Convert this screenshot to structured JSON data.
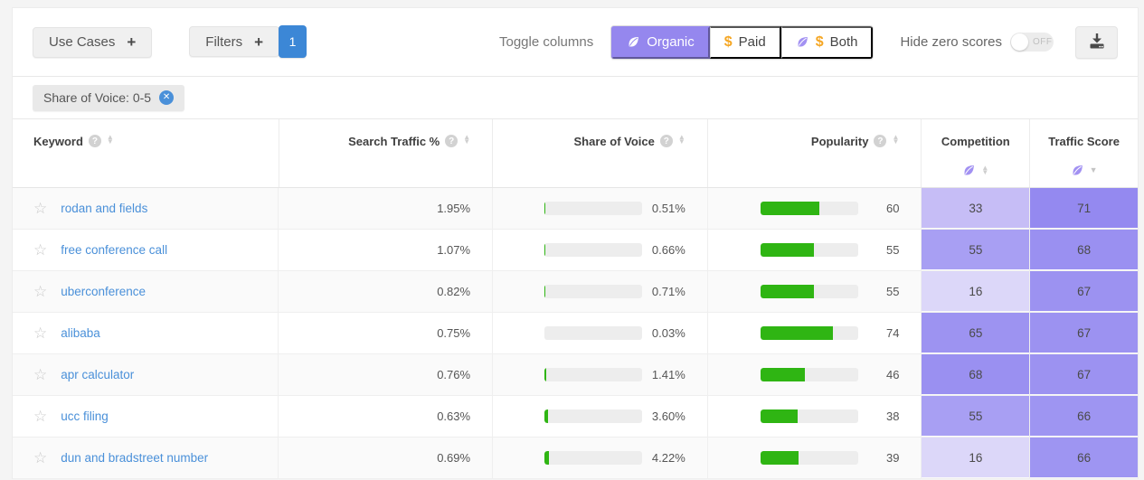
{
  "toolbar": {
    "use_cases_label": "Use Cases",
    "plus": "+",
    "filters_label": "Filters",
    "filters_badge": "1",
    "toggle_columns_label": "Toggle columns",
    "segments": [
      {
        "label": "Organic",
        "icon": "leaf-icon",
        "selected": true
      },
      {
        "label": "Paid",
        "icon": "dollar-icon",
        "selected": false
      },
      {
        "label": "Both",
        "icon": "leaf-and-dollar-icon",
        "selected": false
      }
    ],
    "hide_zero_label": "Hide zero scores",
    "toggle_state": "OFF",
    "download_icon": "download-icon"
  },
  "filters_bar": {
    "chip_label": "Share of Voice: 0-5",
    "chip_close_icon": "close-icon"
  },
  "table": {
    "columns": [
      {
        "label": "Keyword",
        "help": true,
        "sortable": true
      },
      {
        "label": "Search Traffic %",
        "help": true,
        "sortable": true
      },
      {
        "label": "Share of Voice",
        "help": true,
        "sortable": true
      },
      {
        "label": "Popularity",
        "help": true,
        "sortable": true
      },
      {
        "label": "Competition",
        "icon": "leaf-icon",
        "sortable": true
      },
      {
        "label": "Traffic Score",
        "icon": "leaf-icon",
        "sortable": true,
        "sorted": "desc"
      }
    ],
    "rows": [
      {
        "keyword": "rodan and fields",
        "traffic": "1.95%",
        "sov": 0.51,
        "sov_label": "0.51%",
        "pop": 60,
        "pop_label": "60",
        "competition": "33",
        "competition_color": "#c6bdf6",
        "traffic_score": "71",
        "traffic_score_color": "#9489f0"
      },
      {
        "keyword": "free conference call",
        "traffic": "1.07%",
        "sov": 0.66,
        "sov_label": "0.66%",
        "pop": 55,
        "pop_label": "55",
        "competition": "55",
        "competition_color": "#a89ff3",
        "traffic_score": "68",
        "traffic_score_color": "#9a90f1"
      },
      {
        "keyword": "uberconference",
        "traffic": "0.82%",
        "sov": 0.71,
        "sov_label": "0.71%",
        "pop": 55,
        "pop_label": "55",
        "competition": "16",
        "competition_color": "#dcd7f9",
        "traffic_score": "67",
        "traffic_score_color": "#9c92f1"
      },
      {
        "keyword": "alibaba",
        "traffic": "0.75%",
        "sov": 0.03,
        "sov_label": "0.03%",
        "pop": 74,
        "pop_label": "74",
        "competition": "65",
        "competition_color": "#9d93f1",
        "traffic_score": "67",
        "traffic_score_color": "#9c92f1"
      },
      {
        "keyword": "apr calculator",
        "traffic": "0.76%",
        "sov": 1.41,
        "sov_label": "1.41%",
        "pop": 46,
        "pop_label": "46",
        "competition": "68",
        "competition_color": "#9a90f1",
        "traffic_score": "67",
        "traffic_score_color": "#9c92f1"
      },
      {
        "keyword": "ucc filing",
        "traffic": "0.63%",
        "sov": 3.6,
        "sov_label": "3.60%",
        "pop": 38,
        "pop_label": "38",
        "competition": "55",
        "competition_color": "#a89ff3",
        "traffic_score": "66",
        "traffic_score_color": "#9e95f2"
      },
      {
        "keyword": "dun and bradstreet number",
        "traffic": "0.69%",
        "sov": 4.22,
        "sov_label": "4.22%",
        "pop": 39,
        "pop_label": "39",
        "competition": "16",
        "competition_color": "#dcd7f9",
        "traffic_score": "66",
        "traffic_score_color": "#9e95f2"
      }
    ]
  },
  "colors": {
    "accent_purple": "#9587ee",
    "leaf_purple": "#a291f2",
    "dollar_orange": "#f5a623",
    "badge_blue": "#3c87d6",
    "link_blue": "#4a90d9",
    "bar_green": "#2fb513",
    "bar_track": "#ededed"
  }
}
